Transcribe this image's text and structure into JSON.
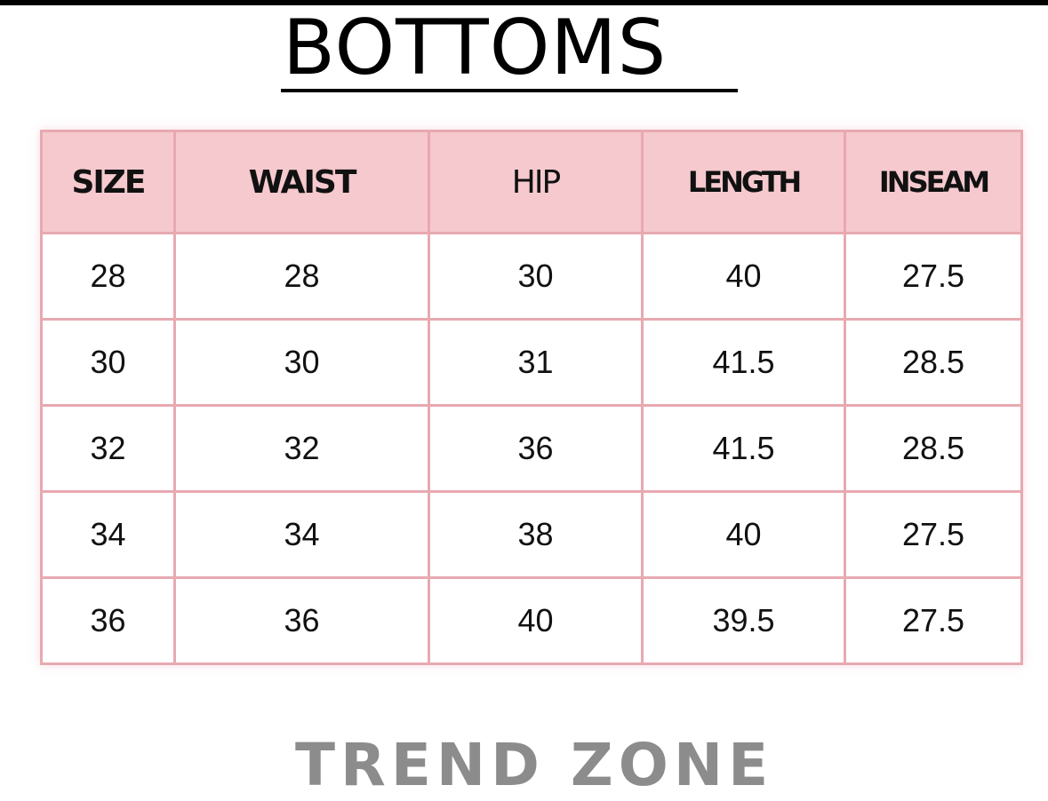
{
  "title": "BOTTOMS",
  "colors": {
    "header_bg": "#f5c9ce",
    "border": "#e8a9b1",
    "brand_text": "#8c8c8c"
  },
  "table": {
    "headers": [
      "SIZE",
      "WAIST",
      "HIP",
      "LENGTH",
      "INSEAM"
    ],
    "rows": [
      [
        "28",
        "28",
        "30",
        "40",
        "27.5"
      ],
      [
        "30",
        "30",
        "31",
        "41.5",
        "28.5"
      ],
      [
        "32",
        "32",
        "36",
        "41.5",
        "28.5"
      ],
      [
        "34",
        "34",
        "38",
        "40",
        "27.5"
      ],
      [
        "36",
        "36",
        "40",
        "39.5",
        "27.5"
      ]
    ]
  },
  "brand": "TREND ZONE"
}
